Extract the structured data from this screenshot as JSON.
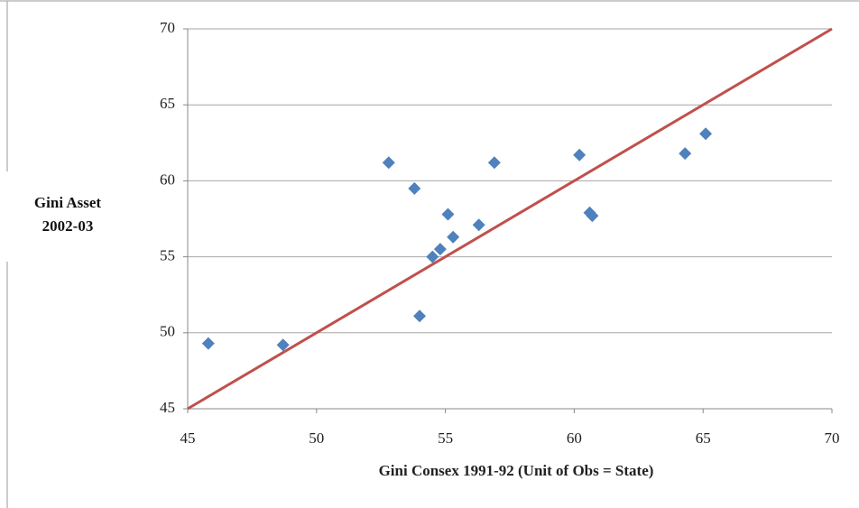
{
  "chart_data": {
    "type": "scatter",
    "xlabel": "Gini Consex  1991-92 (Unit of Obs = State)",
    "ylabel": "Gini Asset 2002-03",
    "x": [
      45.8,
      48.7,
      52.8,
      53.8,
      54.0,
      54.5,
      54.8,
      55.1,
      55.3,
      56.3,
      56.9,
      60.2,
      60.6,
      60.7,
      64.3,
      65.1
    ],
    "values": [
      49.3,
      49.2,
      61.2,
      59.5,
      51.1,
      55.0,
      55.5,
      57.8,
      56.3,
      57.1,
      61.2,
      61.7,
      57.9,
      57.7,
      61.8,
      63.1
    ],
    "color": "#4f81bd",
    "reference_line": {
      "x": [
        45,
        70
      ],
      "y": [
        45,
        70
      ],
      "color": "#c0504d"
    },
    "xlim": [
      45,
      70
    ],
    "xticks": [
      45,
      50,
      55,
      60,
      65,
      70
    ],
    "ylim": [
      45,
      70
    ],
    "yticks": [
      45,
      50,
      55,
      60,
      65,
      70
    ],
    "grid": true
  }
}
